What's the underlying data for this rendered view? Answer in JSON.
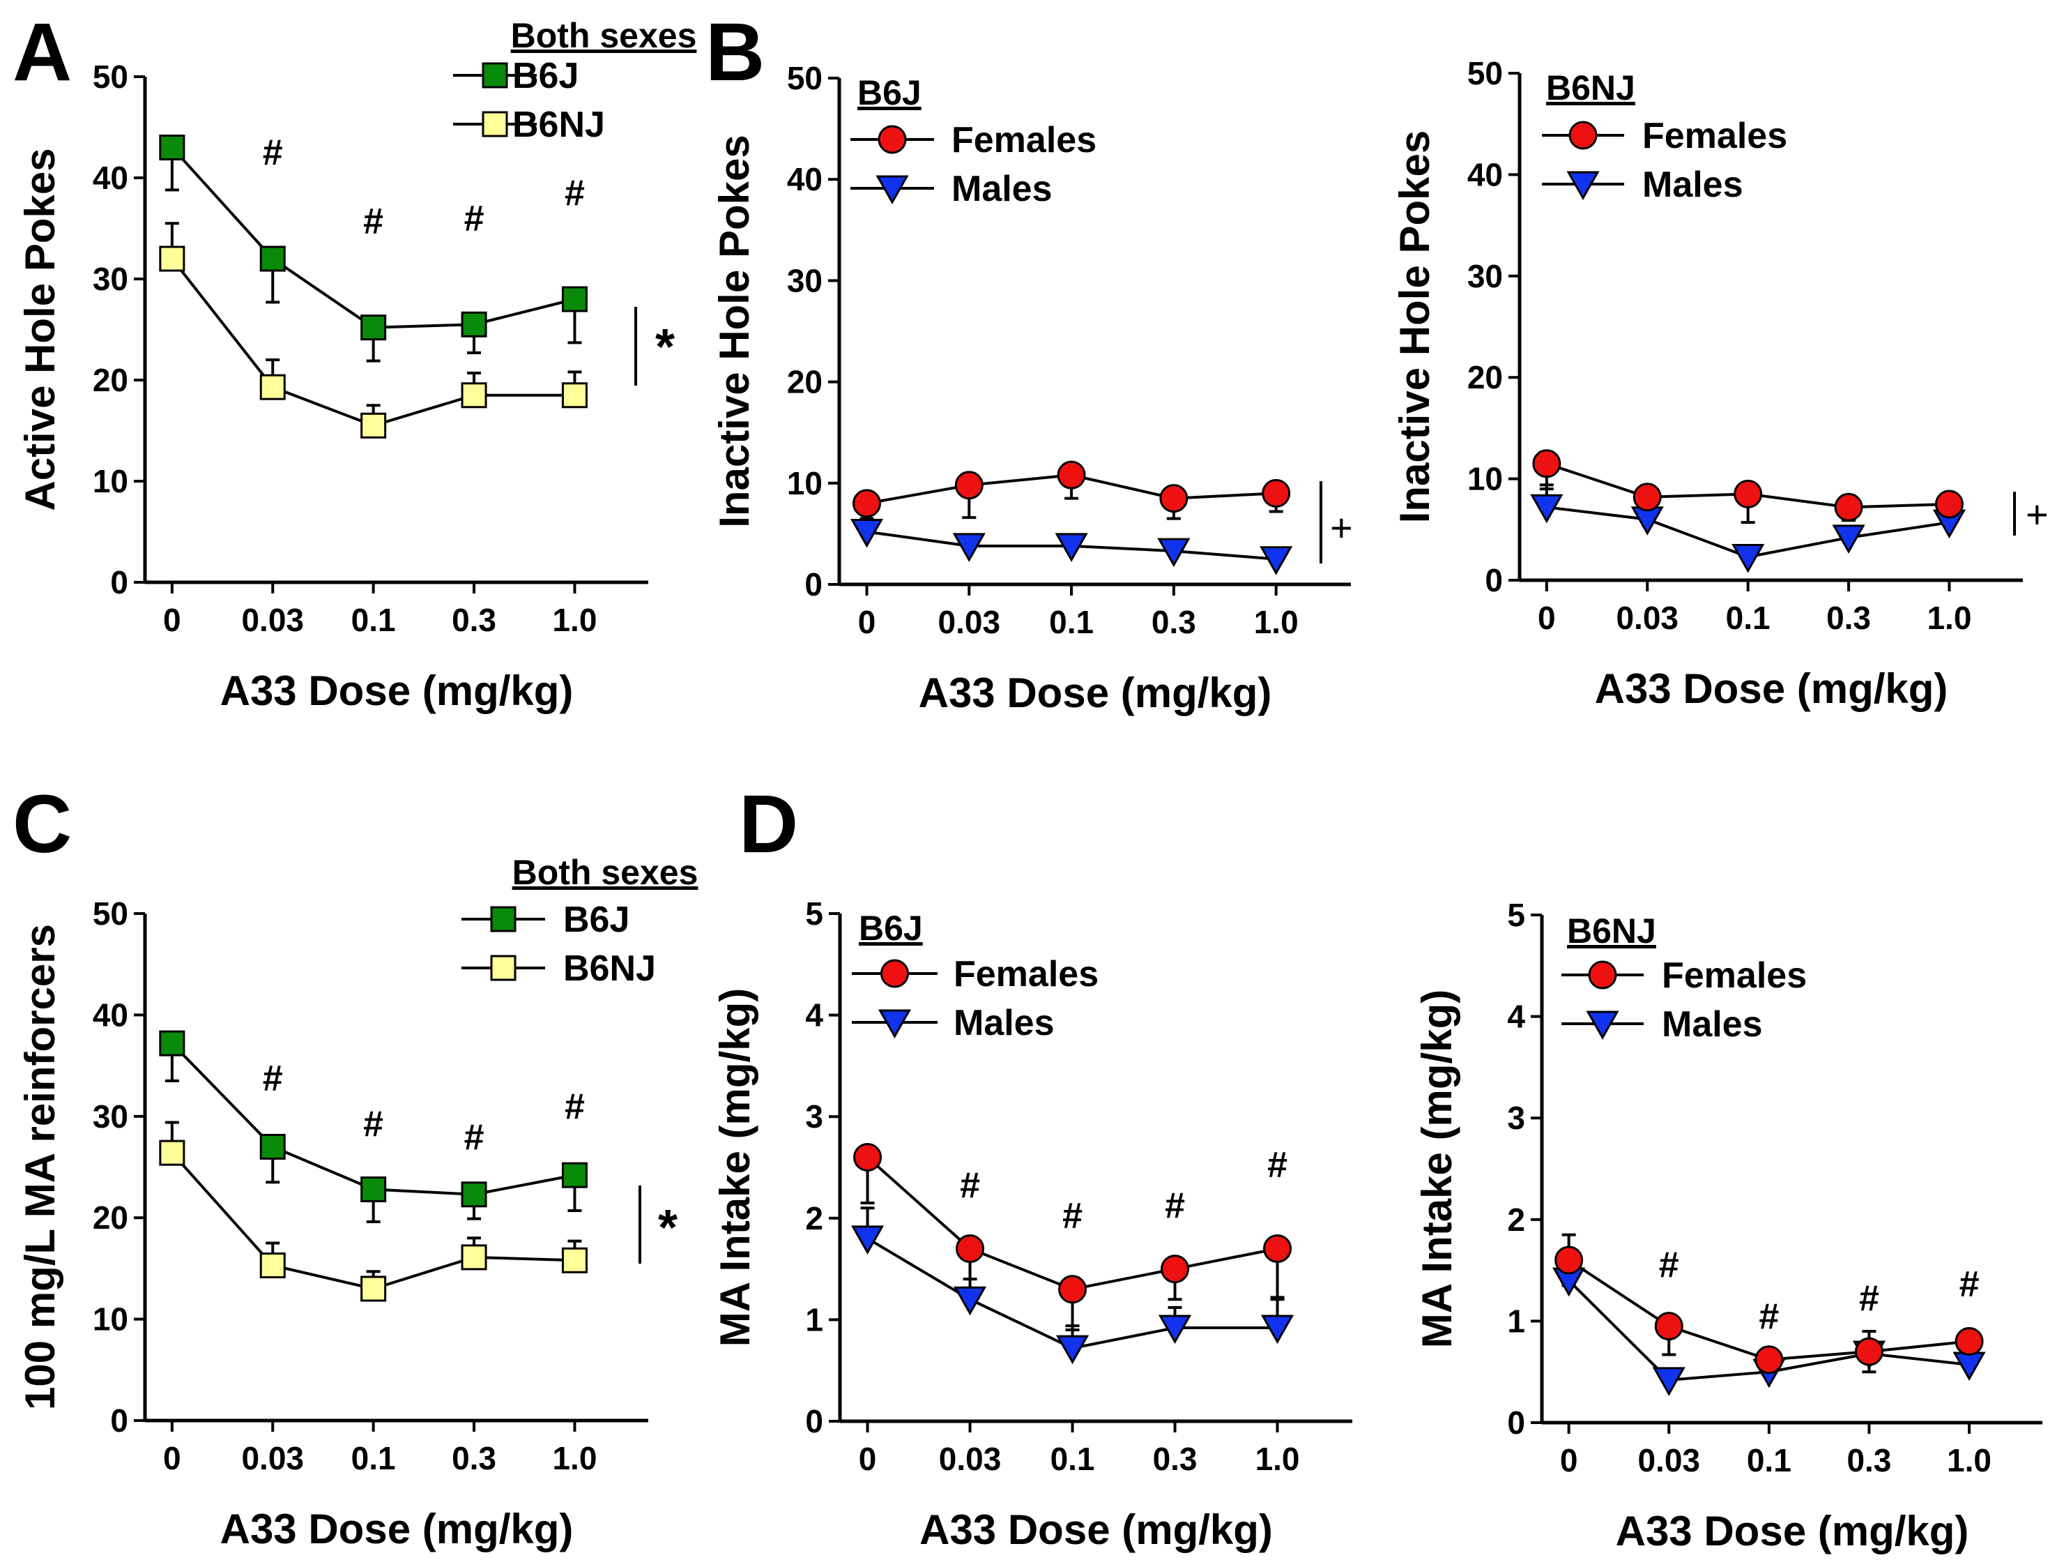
{
  "chart_data": [
    {
      "id": "A",
      "panel_label": "A",
      "type": "line",
      "xlabel": "A33 Dose (mg/kg)",
      "ylabel": "Active Hole Pokes",
      "categories": [
        "0",
        "0.03",
        "0.1",
        "0.3",
        "1.0"
      ],
      "ylim": [
        0,
        50
      ],
      "yticks": [
        "0",
        "10",
        "20",
        "30",
        "40",
        "50"
      ],
      "legend_title": "Both sexes",
      "series": [
        {
          "name": "B6J",
          "marker": "square",
          "color": "#0a8a0a",
          "values": [
            43,
            32,
            25.2,
            25.5,
            28
          ],
          "errors": [
            4.2,
            4.3,
            3.3,
            2.8,
            4.3
          ]
        },
        {
          "name": "B6NJ",
          "marker": "square",
          "color": "#ffff99",
          "values": [
            32,
            19.3,
            15.5,
            18.5,
            18.5
          ],
          "errors": [
            3.5,
            2.7,
            2.0,
            2.2,
            2.3
          ]
        }
      ],
      "annotations": [
        "#",
        "#",
        "#",
        "#"
      ],
      "significance": "*"
    },
    {
      "id": "B1",
      "panel_label": "B",
      "type": "line",
      "xlabel": "A33 Dose (mg/kg)",
      "ylabel": "Inactive Hole Pokes",
      "categories": [
        "0",
        "0.03",
        "0.1",
        "0.3",
        "1.0"
      ],
      "ylim": [
        0,
        50
      ],
      "yticks": [
        "0",
        "10",
        "20",
        "30",
        "40",
        "50"
      ],
      "legend_title": "B6J",
      "series": [
        {
          "name": "Females",
          "marker": "circle",
          "color": "#ee1111",
          "values": [
            8,
            9.8,
            10.8,
            8.5,
            9
          ],
          "errors": [
            1.5,
            3.2,
            2.3,
            2.0,
            1.8
          ]
        },
        {
          "name": "Males",
          "marker": "triangle-down",
          "color": "#1133ee",
          "values": [
            5.2,
            3.8,
            3.8,
            3.3,
            2.5
          ],
          "errors": [
            1.0,
            0.8,
            0.8,
            0.8,
            0.6
          ]
        }
      ],
      "annotations": [],
      "significance": "+"
    },
    {
      "id": "B2",
      "panel_label": "",
      "type": "line",
      "xlabel": "A33 Dose (mg/kg)",
      "ylabel": "Inactive Hole Pokes",
      "categories": [
        "0",
        "0.03",
        "0.1",
        "0.3",
        "1.0"
      ],
      "ylim": [
        0,
        50
      ],
      "yticks": [
        "0",
        "10",
        "20",
        "30",
        "40",
        "50"
      ],
      "legend_title": "B6NJ",
      "series": [
        {
          "name": "Females",
          "marker": "circle",
          "color": "#ee1111",
          "values": [
            11.5,
            8.2,
            8.5,
            7.2,
            7.5
          ],
          "errors": [
            2.5,
            1.8,
            2.8,
            1.3,
            1.0
          ]
        },
        {
          "name": "Males",
          "marker": "triangle-down",
          "color": "#1133ee",
          "values": [
            7.2,
            6,
            2.3,
            4.2,
            5.7
          ],
          "errors": [
            2.2,
            2.0,
            0.6,
            0.9,
            1.0
          ]
        }
      ],
      "annotations": [],
      "significance": "+"
    },
    {
      "id": "C",
      "panel_label": "C",
      "type": "line",
      "xlabel": "A33 Dose (mg/kg)",
      "ylabel": "100 mg/L MA reinforcers",
      "categories": [
        "0",
        "0.03",
        "0.1",
        "0.3",
        "1.0"
      ],
      "ylim": [
        0,
        50
      ],
      "yticks": [
        "0",
        "10",
        "20",
        "30",
        "40",
        "50"
      ],
      "legend_title": "Both sexes",
      "series": [
        {
          "name": "B6J",
          "marker": "square",
          "color": "#0a8a0a",
          "values": [
            37.2,
            27,
            22.8,
            22.3,
            24.2
          ],
          "errors": [
            3.7,
            3.5,
            3.2,
            2.4,
            3.5
          ]
        },
        {
          "name": "B6NJ",
          "marker": "square",
          "color": "#ffff99",
          "values": [
            26.4,
            15.3,
            13.0,
            16.1,
            15.8
          ],
          "errors": [
            3.0,
            2.2,
            1.7,
            1.9,
            1.9
          ]
        }
      ],
      "annotations": [
        "#",
        "#",
        "#",
        "#"
      ],
      "significance": "*"
    },
    {
      "id": "D1",
      "panel_label": "D",
      "type": "line",
      "xlabel": "A33 Dose (mg/kg)",
      "ylabel": "MA Intake (mg/kg)",
      "categories": [
        "0",
        "0.03",
        "0.1",
        "0.3",
        "1.0"
      ],
      "ylim": [
        0,
        5
      ],
      "yticks": [
        "0",
        "1",
        "2",
        "3",
        "4",
        "5"
      ],
      "legend_title": "B6J",
      "series": [
        {
          "name": "Females",
          "marker": "circle",
          "color": "#ee1111",
          "values": [
            2.6,
            1.7,
            1.3,
            1.5,
            1.7
          ],
          "errors": [
            0.45,
            0.3,
            0.4,
            0.3,
            0.5
          ]
        },
        {
          "name": "Males",
          "marker": "triangle-down",
          "color": "#1133ee",
          "values": [
            1.8,
            1.2,
            0.72,
            0.92,
            0.92
          ],
          "errors": [
            0.3,
            0.4,
            0.22,
            0.2,
            0.3
          ]
        }
      ],
      "annotations": [
        "#",
        "#",
        "#",
        "#"
      ],
      "significance": ""
    },
    {
      "id": "D2",
      "panel_label": "",
      "type": "line",
      "xlabel": "A33 Dose (mg/kg)",
      "ylabel": "MA Intake (mg/kg)",
      "categories": [
        "0",
        "0.03",
        "0.1",
        "0.3",
        "1.0"
      ],
      "ylim": [
        0,
        5
      ],
      "yticks": [
        "0",
        "1",
        "2",
        "3",
        "4",
        "5"
      ],
      "legend_title": "B6NJ",
      "series": [
        {
          "name": "Females",
          "marker": "circle",
          "color": "#ee1111",
          "values": [
            1.6,
            0.95,
            0.62,
            0.7,
            0.8
          ],
          "errors": [
            0.25,
            0.28,
            0.1,
            0.2,
            0.24
          ]
        },
        {
          "name": "Males",
          "marker": "triangle-down",
          "color": "#1133ee",
          "values": [
            1.4,
            0.42,
            0.5,
            0.68,
            0.57
          ],
          "errors": [
            0.45,
            0.05,
            0.1,
            0.22,
            0.1
          ]
        }
      ],
      "annotations": [
        "#",
        "#",
        "#",
        "#"
      ],
      "significance": ""
    }
  ]
}
